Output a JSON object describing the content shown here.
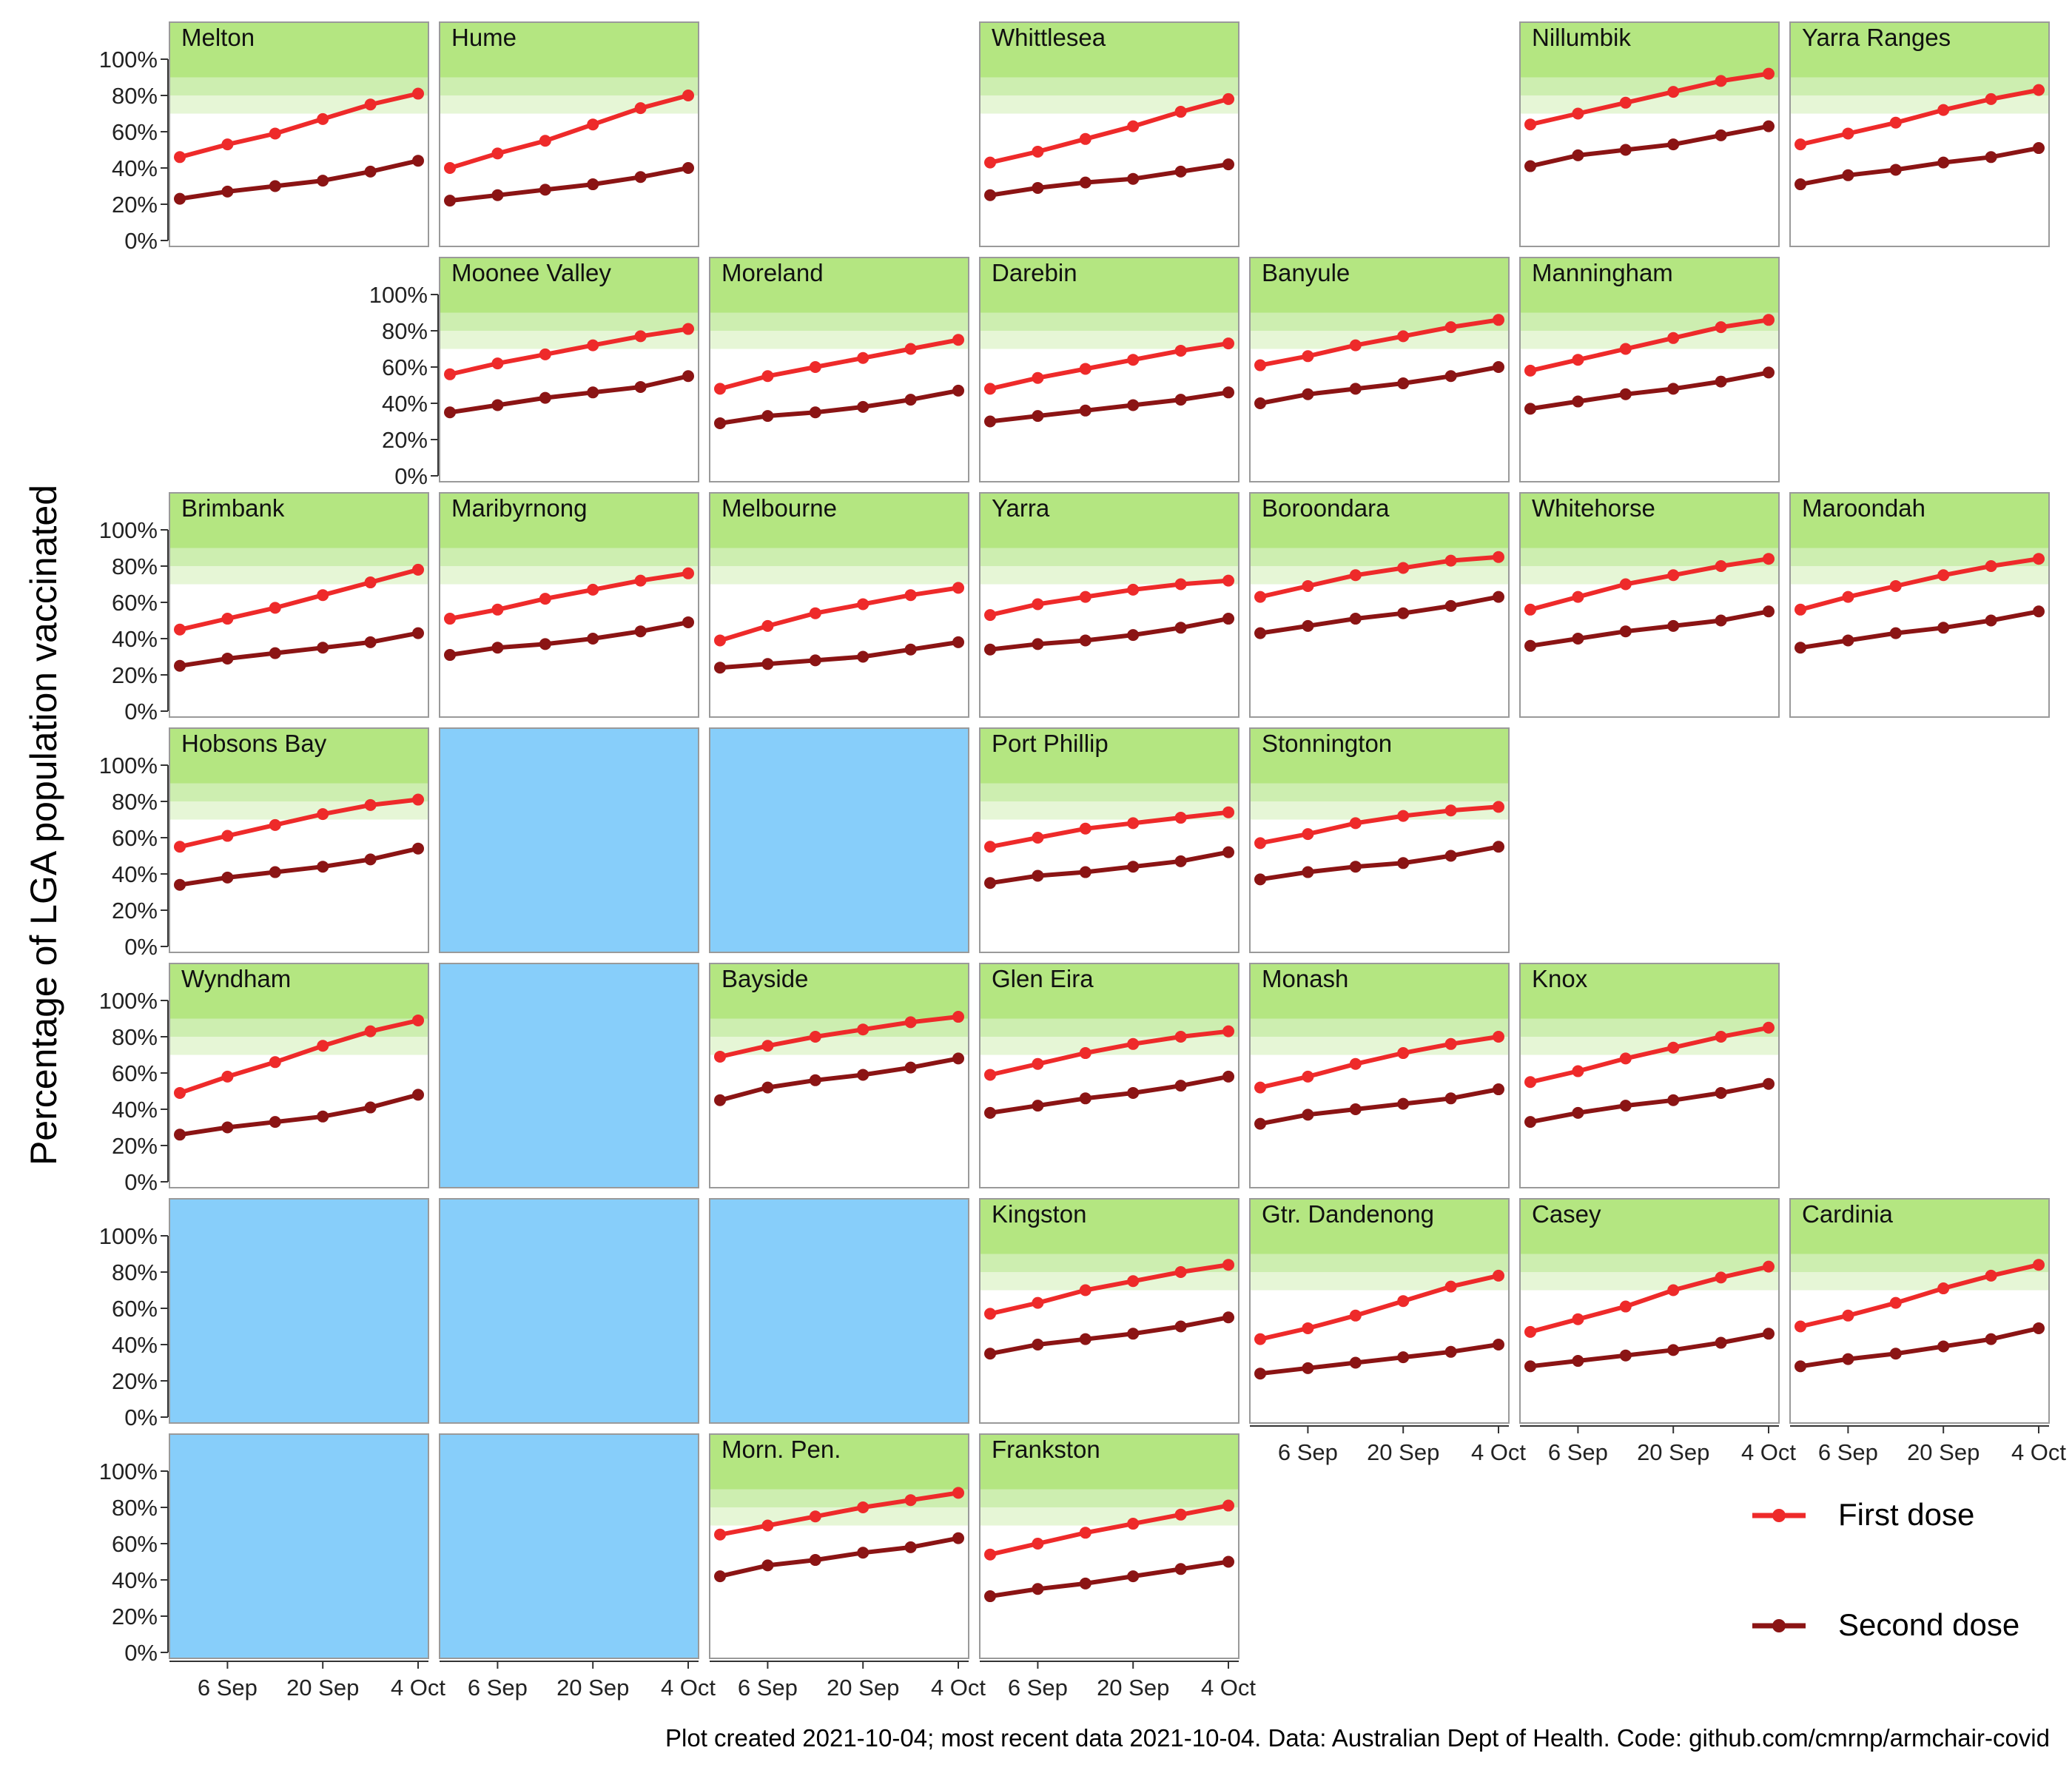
{
  "chart_data": {
    "type": "line",
    "ylabel": "Percentage of LGA population vaccinated",
    "ylim": [
      0,
      1
    ],
    "yticks": [
      "0%",
      "20%",
      "40%",
      "60%",
      "80%",
      "100%"
    ],
    "xticks": [
      "6 Sep",
      "20 Sep",
      "4 Oct"
    ],
    "x": [
      "2021-08-30",
      "2021-09-06",
      "2021-09-13",
      "2021-09-20",
      "2021-09-27",
      "2021-10-04"
    ],
    "legend": {
      "position": "bottom-right"
    },
    "series_style": [
      {
        "name": "First dose",
        "color": "#EE2A2A"
      },
      {
        "name": "Second dose",
        "color": "#8B1414"
      }
    ],
    "target_bands": [
      {
        "from": 0.7,
        "to": 0.8,
        "color": "#E6F6D6"
      },
      {
        "from": 0.8,
        "to": 0.9,
        "color": "#CDEEB0"
      },
      {
        "from": 0.9,
        "to": 1.0,
        "color": "#B4E681"
      }
    ],
    "empty_tile_color": "#87CEFA",
    "rows": [
      {
        "xaxis_cols": [],
        "yaxis_col": 0,
        "tiles": [
          {
            "col": 0,
            "name": "Melton",
            "first": [
              0.46,
              0.53,
              0.59,
              0.67,
              0.75,
              0.81
            ],
            "second": [
              0.23,
              0.27,
              0.3,
              0.33,
              0.38,
              0.44
            ]
          },
          {
            "col": 1,
            "name": "Hume",
            "first": [
              0.4,
              0.48,
              0.55,
              0.64,
              0.73,
              0.8
            ],
            "second": [
              0.22,
              0.25,
              0.28,
              0.31,
              0.35,
              0.4
            ]
          },
          {
            "col": 3,
            "name": "Whittlesea",
            "first": [
              0.43,
              0.49,
              0.56,
              0.63,
              0.71,
              0.78
            ],
            "second": [
              0.25,
              0.29,
              0.32,
              0.34,
              0.38,
              0.42
            ]
          },
          {
            "col": 5,
            "name": "Nillumbik",
            "first": [
              0.64,
              0.7,
              0.76,
              0.82,
              0.88,
              0.92
            ],
            "second": [
              0.41,
              0.47,
              0.5,
              0.53,
              0.58,
              0.63
            ]
          },
          {
            "col": 6,
            "name": "Yarra Ranges",
            "first": [
              0.53,
              0.59,
              0.65,
              0.72,
              0.78,
              0.83
            ],
            "second": [
              0.31,
              0.36,
              0.39,
              0.43,
              0.46,
              0.51
            ]
          }
        ]
      },
      {
        "xaxis_cols": [],
        "yaxis_col": 1,
        "tiles": [
          {
            "col": 1,
            "name": "Moonee Valley",
            "first": [
              0.56,
              0.62,
              0.67,
              0.72,
              0.77,
              0.81
            ],
            "second": [
              0.35,
              0.39,
              0.43,
              0.46,
              0.49,
              0.55
            ]
          },
          {
            "col": 2,
            "name": "Moreland",
            "first": [
              0.48,
              0.55,
              0.6,
              0.65,
              0.7,
              0.75
            ],
            "second": [
              0.29,
              0.33,
              0.35,
              0.38,
              0.42,
              0.47
            ]
          },
          {
            "col": 3,
            "name": "Darebin",
            "first": [
              0.48,
              0.54,
              0.59,
              0.64,
              0.69,
              0.73
            ],
            "second": [
              0.3,
              0.33,
              0.36,
              0.39,
              0.42,
              0.46
            ]
          },
          {
            "col": 4,
            "name": "Banyule",
            "first": [
              0.61,
              0.66,
              0.72,
              0.77,
              0.82,
              0.86
            ],
            "second": [
              0.4,
              0.45,
              0.48,
              0.51,
              0.55,
              0.6
            ]
          },
          {
            "col": 5,
            "name": "Manningham",
            "first": [
              0.58,
              0.64,
              0.7,
              0.76,
              0.82,
              0.86
            ],
            "second": [
              0.37,
              0.41,
              0.45,
              0.48,
              0.52,
              0.57
            ]
          }
        ]
      },
      {
        "xaxis_cols": [],
        "yaxis_col": 0,
        "tiles": [
          {
            "col": 0,
            "name": "Brimbank",
            "first": [
              0.45,
              0.51,
              0.57,
              0.64,
              0.71,
              0.78
            ],
            "second": [
              0.25,
              0.29,
              0.32,
              0.35,
              0.38,
              0.43
            ]
          },
          {
            "col": 1,
            "name": "Maribyrnong",
            "first": [
              0.51,
              0.56,
              0.62,
              0.67,
              0.72,
              0.76
            ],
            "second": [
              0.31,
              0.35,
              0.37,
              0.4,
              0.44,
              0.49
            ]
          },
          {
            "col": 2,
            "name": "Melbourne",
            "first": [
              0.39,
              0.47,
              0.54,
              0.59,
              0.64,
              0.68
            ],
            "second": [
              0.24,
              0.26,
              0.28,
              0.3,
              0.34,
              0.38
            ]
          },
          {
            "col": 3,
            "name": "Yarra",
            "first": [
              0.53,
              0.59,
              0.63,
              0.67,
              0.7,
              0.72
            ],
            "second": [
              0.34,
              0.37,
              0.39,
              0.42,
              0.46,
              0.51
            ]
          },
          {
            "col": 4,
            "name": "Boroondara",
            "first": [
              0.63,
              0.69,
              0.75,
              0.79,
              0.83,
              0.85
            ],
            "second": [
              0.43,
              0.47,
              0.51,
              0.54,
              0.58,
              0.63
            ]
          },
          {
            "col": 5,
            "name": "Whitehorse",
            "first": [
              0.56,
              0.63,
              0.7,
              0.75,
              0.8,
              0.84
            ],
            "second": [
              0.36,
              0.4,
              0.44,
              0.47,
              0.5,
              0.55
            ]
          },
          {
            "col": 6,
            "name": "Maroondah",
            "first": [
              0.56,
              0.63,
              0.69,
              0.75,
              0.8,
              0.84
            ],
            "second": [
              0.35,
              0.39,
              0.43,
              0.46,
              0.5,
              0.55
            ]
          }
        ]
      },
      {
        "xaxis_cols": [],
        "yaxis_col": 0,
        "tiles": [
          {
            "col": 0,
            "name": "Hobsons Bay",
            "first": [
              0.55,
              0.61,
              0.67,
              0.73,
              0.78,
              0.81
            ],
            "second": [
              0.34,
              0.38,
              0.41,
              0.44,
              0.48,
              0.54
            ]
          },
          {
            "col": 1,
            "empty": true
          },
          {
            "col": 2,
            "empty": true
          },
          {
            "col": 3,
            "name": "Port Phillip",
            "first": [
              0.55,
              0.6,
              0.65,
              0.68,
              0.71,
              0.74
            ],
            "second": [
              0.35,
              0.39,
              0.41,
              0.44,
              0.47,
              0.52
            ]
          },
          {
            "col": 4,
            "name": "Stonnington",
            "first": [
              0.57,
              0.62,
              0.68,
              0.72,
              0.75,
              0.77
            ],
            "second": [
              0.37,
              0.41,
              0.44,
              0.46,
              0.5,
              0.55
            ]
          }
        ]
      },
      {
        "xaxis_cols": [],
        "yaxis_col": 0,
        "tiles": [
          {
            "col": 0,
            "name": "Wyndham",
            "first": [
              0.49,
              0.58,
              0.66,
              0.75,
              0.83,
              0.89
            ],
            "second": [
              0.26,
              0.3,
              0.33,
              0.36,
              0.41,
              0.48
            ]
          },
          {
            "col": 1,
            "empty": true
          },
          {
            "col": 2,
            "name": "Bayside",
            "first": [
              0.69,
              0.75,
              0.8,
              0.84,
              0.88,
              0.91
            ],
            "second": [
              0.45,
              0.52,
              0.56,
              0.59,
              0.63,
              0.68
            ]
          },
          {
            "col": 3,
            "name": "Glen Eira",
            "first": [
              0.59,
              0.65,
              0.71,
              0.76,
              0.8,
              0.83
            ],
            "second": [
              0.38,
              0.42,
              0.46,
              0.49,
              0.53,
              0.58
            ]
          },
          {
            "col": 4,
            "name": "Monash",
            "first": [
              0.52,
              0.58,
              0.65,
              0.71,
              0.76,
              0.8
            ],
            "second": [
              0.32,
              0.37,
              0.4,
              0.43,
              0.46,
              0.51
            ]
          },
          {
            "col": 5,
            "name": "Knox",
            "first": [
              0.55,
              0.61,
              0.68,
              0.74,
              0.8,
              0.85
            ],
            "second": [
              0.33,
              0.38,
              0.42,
              0.45,
              0.49,
              0.54
            ]
          }
        ]
      },
      {
        "xaxis_cols": [
          4,
          5,
          6
        ],
        "yaxis_col": 0,
        "tiles": [
          {
            "col": 0,
            "empty": true
          },
          {
            "col": 1,
            "empty": true
          },
          {
            "col": 2,
            "empty": true
          },
          {
            "col": 3,
            "name": "Kingston",
            "first": [
              0.57,
              0.63,
              0.7,
              0.75,
              0.8,
              0.84
            ],
            "second": [
              0.35,
              0.4,
              0.43,
              0.46,
              0.5,
              0.55
            ]
          },
          {
            "col": 4,
            "name": "Gtr. Dandenong",
            "first": [
              0.43,
              0.49,
              0.56,
              0.64,
              0.72,
              0.78
            ],
            "second": [
              0.24,
              0.27,
              0.3,
              0.33,
              0.36,
              0.4
            ]
          },
          {
            "col": 5,
            "name": "Casey",
            "first": [
              0.47,
              0.54,
              0.61,
              0.7,
              0.77,
              0.83
            ],
            "second": [
              0.28,
              0.31,
              0.34,
              0.37,
              0.41,
              0.46
            ]
          },
          {
            "col": 6,
            "name": "Cardinia",
            "first": [
              0.5,
              0.56,
              0.63,
              0.71,
              0.78,
              0.84
            ],
            "second": [
              0.28,
              0.32,
              0.35,
              0.39,
              0.43,
              0.49
            ]
          }
        ]
      },
      {
        "xaxis_cols": [
          0,
          1,
          2,
          3
        ],
        "yaxis_col": 0,
        "tiles": [
          {
            "col": 0,
            "empty": true
          },
          {
            "col": 1,
            "empty": true
          },
          {
            "col": 2,
            "name": "Morn. Pen.",
            "first": [
              0.65,
              0.7,
              0.75,
              0.8,
              0.84,
              0.88
            ],
            "second": [
              0.42,
              0.48,
              0.51,
              0.55,
              0.58,
              0.63
            ]
          },
          {
            "col": 3,
            "name": "Frankston",
            "first": [
              0.54,
              0.6,
              0.66,
              0.71,
              0.76,
              0.81
            ],
            "second": [
              0.31,
              0.35,
              0.38,
              0.42,
              0.46,
              0.5
            ]
          }
        ]
      }
    ]
  },
  "legend_items": [
    "First dose",
    "Second dose"
  ],
  "caption": "Plot created 2021-10-04; most recent data 2021-10-04. Data: Australian Dept of Health. Code: github.com/cmrnp/armchair-covid"
}
